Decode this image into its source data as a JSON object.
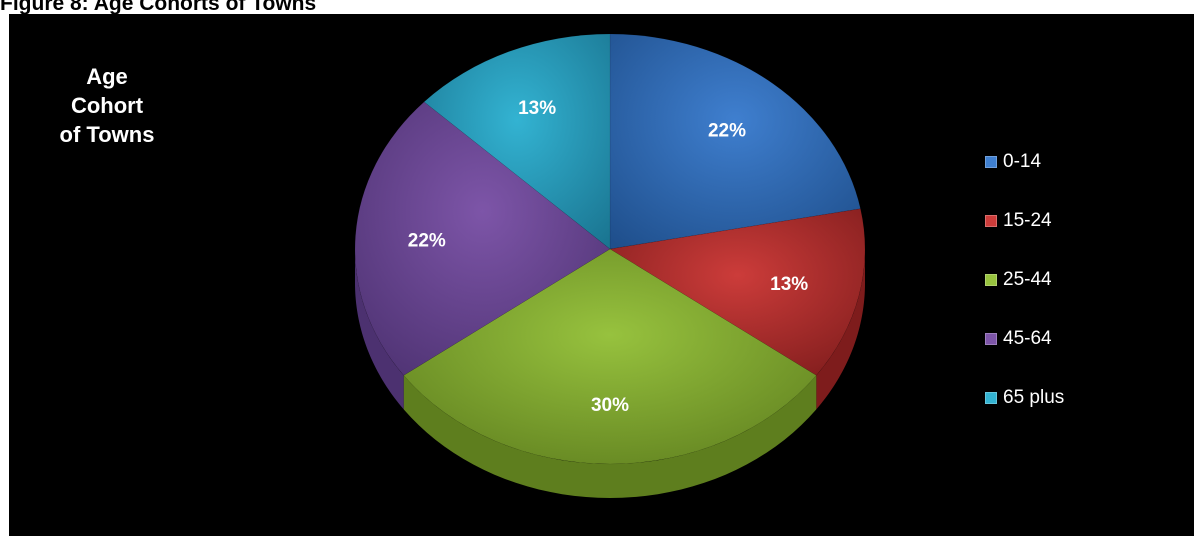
{
  "figure": {
    "caption": "Figure 8:  Age Cohorts of Towns"
  },
  "chart_data": {
    "type": "pie",
    "title_lines": [
      "Age",
      "Cohort",
      "of Towns"
    ],
    "categories": [
      "0-14",
      "15-24",
      "25-44",
      "45-64",
      "65 plus"
    ],
    "values": [
      22,
      13,
      30,
      22,
      13
    ],
    "labels": [
      "22%",
      "13%",
      "30%",
      "22%",
      "13%"
    ],
    "colors": [
      "#3f7fcf",
      "#cc3c3a",
      "#97c23e",
      "#7d55a8",
      "#33b3d2"
    ],
    "side_colors": [
      "#1f4f8c",
      "#7e1c1c",
      "#5e7e1e",
      "#4c3170",
      "#1a7591"
    ],
    "legend_position": "right",
    "style": "3d"
  }
}
